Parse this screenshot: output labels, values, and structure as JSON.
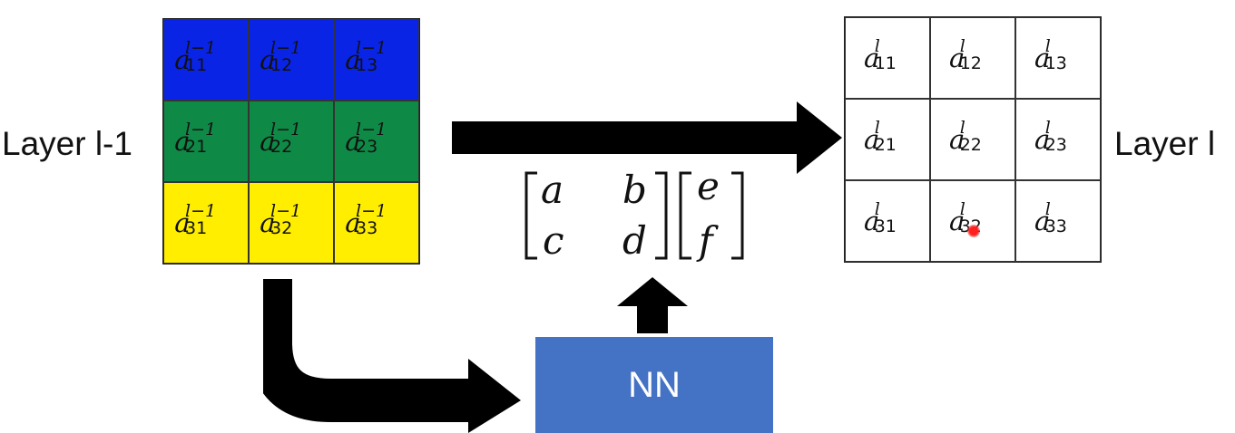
{
  "labels": {
    "left_layer": "Layer l-1",
    "right_layer": "Layer l",
    "nn_box": "NN"
  },
  "colors": {
    "row_top": "#0a24e6",
    "row_middle": "#0f8a46",
    "row_bottom": "#ffee00",
    "nn_box": "#4472c4",
    "arrows": "#000000"
  },
  "left_grid": {
    "symbol": "a",
    "superscript": "l−1",
    "cells": [
      [
        "11",
        "12",
        "13"
      ],
      [
        "21",
        "22",
        "23"
      ],
      [
        "31",
        "32",
        "33"
      ]
    ]
  },
  "right_grid": {
    "symbol": "a",
    "superscript": "l",
    "cells": [
      [
        "11",
        "12",
        "13"
      ],
      [
        "21",
        "22",
        "23"
      ],
      [
        "31",
        "32",
        "33"
      ]
    ]
  },
  "matrix": {
    "entries": [
      "a",
      "b",
      "c",
      "d"
    ],
    "vector": [
      "e",
      "f"
    ]
  }
}
